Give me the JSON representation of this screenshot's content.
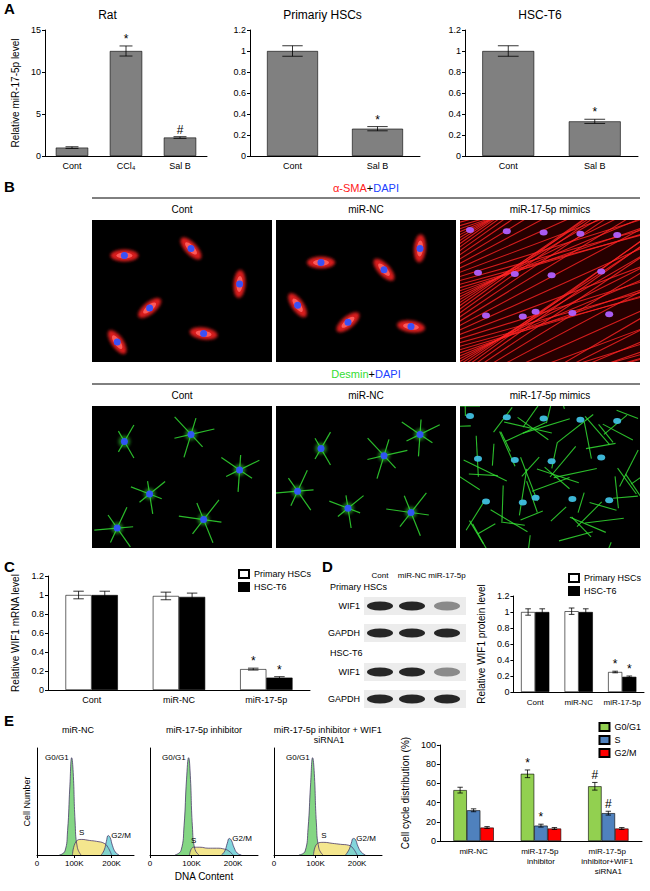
{
  "panel_labels": [
    "A",
    "B",
    "C",
    "D",
    "E"
  ],
  "chart_data": [
    {
      "type": "bar",
      "title": "Rat",
      "categories": [
        "Cont",
        "CCl₄",
        "Sal B"
      ],
      "values": [
        1,
        12.5,
        2.2
      ],
      "errors": [
        0.1,
        0.6,
        0.1
      ],
      "annotations": [
        null,
        "*",
        "#"
      ],
      "color": "#808080",
      "ylabel": "Relative miR-17-5p level",
      "ylim": [
        0,
        15
      ],
      "yticks": [
        0,
        5,
        10,
        15
      ],
      "grid": false
    },
    {
      "type": "bar",
      "title": "Primariy HSCs",
      "categories": [
        "Cont",
        "Sal B"
      ],
      "values": [
        1,
        0.26
      ],
      "errors": [
        0.05,
        0.02
      ],
      "annotations": [
        null,
        "*"
      ],
      "color": "#808080",
      "ylim": [
        0,
        1.2
      ],
      "yticks": [
        0,
        0.2,
        0.4,
        0.6,
        0.8,
        1,
        1.2
      ],
      "grid": false
    },
    {
      "type": "bar",
      "title": "HSC-T6",
      "categories": [
        "Cont",
        "Sal B"
      ],
      "values": [
        1,
        0.33
      ],
      "errors": [
        0.05,
        0.02
      ],
      "annotations": [
        null,
        "*"
      ],
      "color": "#808080",
      "ylim": [
        0,
        1.2
      ],
      "yticks": [
        0,
        0.2,
        0.4,
        0.6,
        0.8,
        1,
        1.2
      ],
      "grid": false
    },
    {
      "type": "bar",
      "categories": [
        "Cont",
        "miR-NC",
        "miR-17-5p"
      ],
      "series": [
        {
          "name": "Primary HSCs",
          "color": "#ffffff",
          "values": [
            1,
            0.99,
            0.22
          ],
          "errors": [
            0.04,
            0.04,
            0.01
          ],
          "annotations": [
            null,
            null,
            "*"
          ]
        },
        {
          "name": "HSC-T6",
          "color": "#000000",
          "values": [
            1,
            0.98,
            0.13
          ],
          "errors": [
            0.04,
            0.04,
            0.01
          ],
          "annotations": [
            null,
            null,
            "*"
          ]
        }
      ],
      "ylabel": "Relative WIF1 mRNA level",
      "ylim": [
        0,
        1.2
      ],
      "yticks": [
        0,
        0.2,
        0.4,
        0.6,
        0.8,
        1,
        1.2
      ],
      "legend": "upper right",
      "grid": false
    },
    {
      "type": "bar",
      "categories": [
        "Cont",
        "miR-NC",
        "miR-17-5p"
      ],
      "series": [
        {
          "name": "Primary HSCs",
          "color": "#ffffff",
          "values": [
            1,
            1.01,
            0.25
          ],
          "errors": [
            0.04,
            0.04,
            0.01
          ],
          "annotations": [
            null,
            null,
            "*"
          ]
        },
        {
          "name": "HSC-T6",
          "color": "#000000",
          "values": [
            1,
            1,
            0.19
          ],
          "errors": [
            0.04,
            0.04,
            0.01
          ],
          "annotations": [
            null,
            null,
            "*"
          ]
        }
      ],
      "ylabel": "Relative WIF1 protein level",
      "ylim": [
        0,
        1.2
      ],
      "yticks": [
        0,
        0.2,
        0.4,
        0.6,
        0.8,
        1,
        1.2
      ],
      "legend": "upper right",
      "grid": false
    },
    {
      "type": "area",
      "title": "miR-NC",
      "ylabel": "Cell Number",
      "xlim": [
        0,
        260000
      ],
      "xticks": [
        0,
        {
          "value": 100000,
          "label": "100K"
        },
        {
          "value": 200000,
          "label": "200K"
        }
      ],
      "ylim": [
        0,
        110
      ],
      "tick_labels": "x",
      "grid": false,
      "series": [
        {
          "name": "G0/G1",
          "color": "#6fcf6f",
          "x": [
            60000,
            75000,
            82000,
            88000,
            93000,
            97000,
            102000,
            108000,
            118000
          ],
          "values": [
            0,
            4,
            25,
            70,
            100,
            85,
            35,
            8,
            0
          ]
        },
        {
          "name": "S",
          "color": "#f2e27a",
          "x": [
            95000,
            105000,
            120000,
            140000,
            160000,
            180000,
            190000,
            200000
          ],
          "values": [
            0,
            14,
            16,
            15,
            14,
            12,
            8,
            0
          ]
        },
        {
          "name": "G2/M",
          "color": "#6ccfd6",
          "x": [
            172000,
            180000,
            186000,
            191000,
            196000,
            202000,
            210000,
            220000
          ],
          "values": [
            0,
            5,
            14,
            20,
            18,
            10,
            3,
            0
          ]
        }
      ]
    },
    {
      "type": "area",
      "title": "miR-17-5p inhibitor",
      "xlabel": "DNA Content",
      "xlim": [
        0,
        260000
      ],
      "xticks": [
        0,
        {
          "value": 100000,
          "label": "100K"
        },
        {
          "value": 200000,
          "label": "200K"
        }
      ],
      "ylim": [
        0,
        110
      ],
      "tick_labels": "x",
      "grid": false,
      "series": [
        {
          "name": "G0/G1",
          "color": "#6fcf6f",
          "x": [
            60000,
            75000,
            82000,
            88000,
            93000,
            97000,
            102000,
            108000,
            118000
          ],
          "values": [
            0,
            5,
            30,
            78,
            100,
            82,
            30,
            6,
            0
          ]
        },
        {
          "name": "S",
          "color": "#f2e27a",
          "x": [
            95000,
            105000,
            120000,
            140000,
            160000,
            180000,
            190000,
            200000
          ],
          "values": [
            0,
            8,
            8,
            7,
            7,
            6,
            4,
            0
          ]
        },
        {
          "name": "G2/M",
          "color": "#6ccfd6",
          "x": [
            172000,
            180000,
            186000,
            191000,
            196000,
            202000,
            210000,
            220000
          ],
          "values": [
            0,
            4,
            12,
            17,
            15,
            8,
            2,
            0
          ]
        }
      ]
    },
    {
      "type": "area",
      "title": "miR-17-5p inhibitor + WIF1 siRNA1",
      "xlim": [
        0,
        260000
      ],
      "xticks": [
        0,
        {
          "value": 100000,
          "label": "100K"
        },
        {
          "value": 200000,
          "label": "200K"
        }
      ],
      "ylim": [
        0,
        110
      ],
      "tick_labels": "x",
      "grid": false,
      "series": [
        {
          "name": "G0/G1",
          "color": "#6fcf6f",
          "x": [
            60000,
            75000,
            82000,
            88000,
            93000,
            97000,
            102000,
            108000,
            118000
          ],
          "values": [
            0,
            4,
            27,
            72,
            100,
            84,
            33,
            7,
            0
          ]
        },
        {
          "name": "S",
          "color": "#f2e27a",
          "x": [
            95000,
            105000,
            120000,
            140000,
            160000,
            180000,
            190000,
            200000
          ],
          "values": [
            0,
            12,
            13,
            12,
            11,
            10,
            7,
            0
          ]
        },
        {
          "name": "G2/M",
          "color": "#6ccfd6",
          "x": [
            172000,
            180000,
            186000,
            191000,
            196000,
            202000,
            210000,
            220000
          ],
          "values": [
            0,
            5,
            12,
            17,
            16,
            9,
            3,
            0
          ]
        }
      ]
    },
    {
      "type": "bar",
      "categories": [
        "miR-NC",
        "miR-17-5p inhibitor",
        "miR-17-5p inhibitor+WIF1 siRNA1"
      ],
      "series": [
        {
          "name": "G0/G1",
          "color": "#92d050",
          "values": [
            53,
            70,
            57
          ],
          "errors": [
            3,
            4,
            4
          ],
          "annotations": [
            null,
            "*",
            "#"
          ]
        },
        {
          "name": "S",
          "color": "#4f81bd",
          "values": [
            32,
            16,
            29
          ],
          "errors": [
            1.5,
            1.5,
            2
          ],
          "annotations": [
            null,
            "*",
            "#"
          ]
        },
        {
          "name": "G2/M",
          "color": "#ff0000",
          "values": [
            14,
            13,
            13
          ],
          "errors": [
            1,
            1,
            1
          ],
          "annotations": [
            null,
            null,
            null
          ]
        }
      ],
      "ylabel": "Cell cycle distribution (%)",
      "ylim": [
        0,
        100
      ],
      "yticks": [
        0,
        20,
        40,
        60,
        80,
        100
      ],
      "legend": "upper right",
      "grid": false
    }
  ],
  "immunofluorescence": {
    "rows": [
      {
        "stain": "α-SMA+DAPI"
      },
      {
        "stain": "Desmin+DAPI"
      }
    ],
    "columns": [
      "Cont",
      "miR-NC",
      "miR-17-5p mimics"
    ]
  },
  "western_blot": {
    "columns": [
      "Cont",
      "miR-NC",
      "miR-17-5p"
    ],
    "groups": [
      {
        "name": "Primary HSCs",
        "rows": [
          "WIF1",
          "GAPDH"
        ]
      },
      {
        "name": "HSC-T6",
        "rows": [
          "WIF1",
          "GAPDH"
        ]
      }
    ]
  }
}
